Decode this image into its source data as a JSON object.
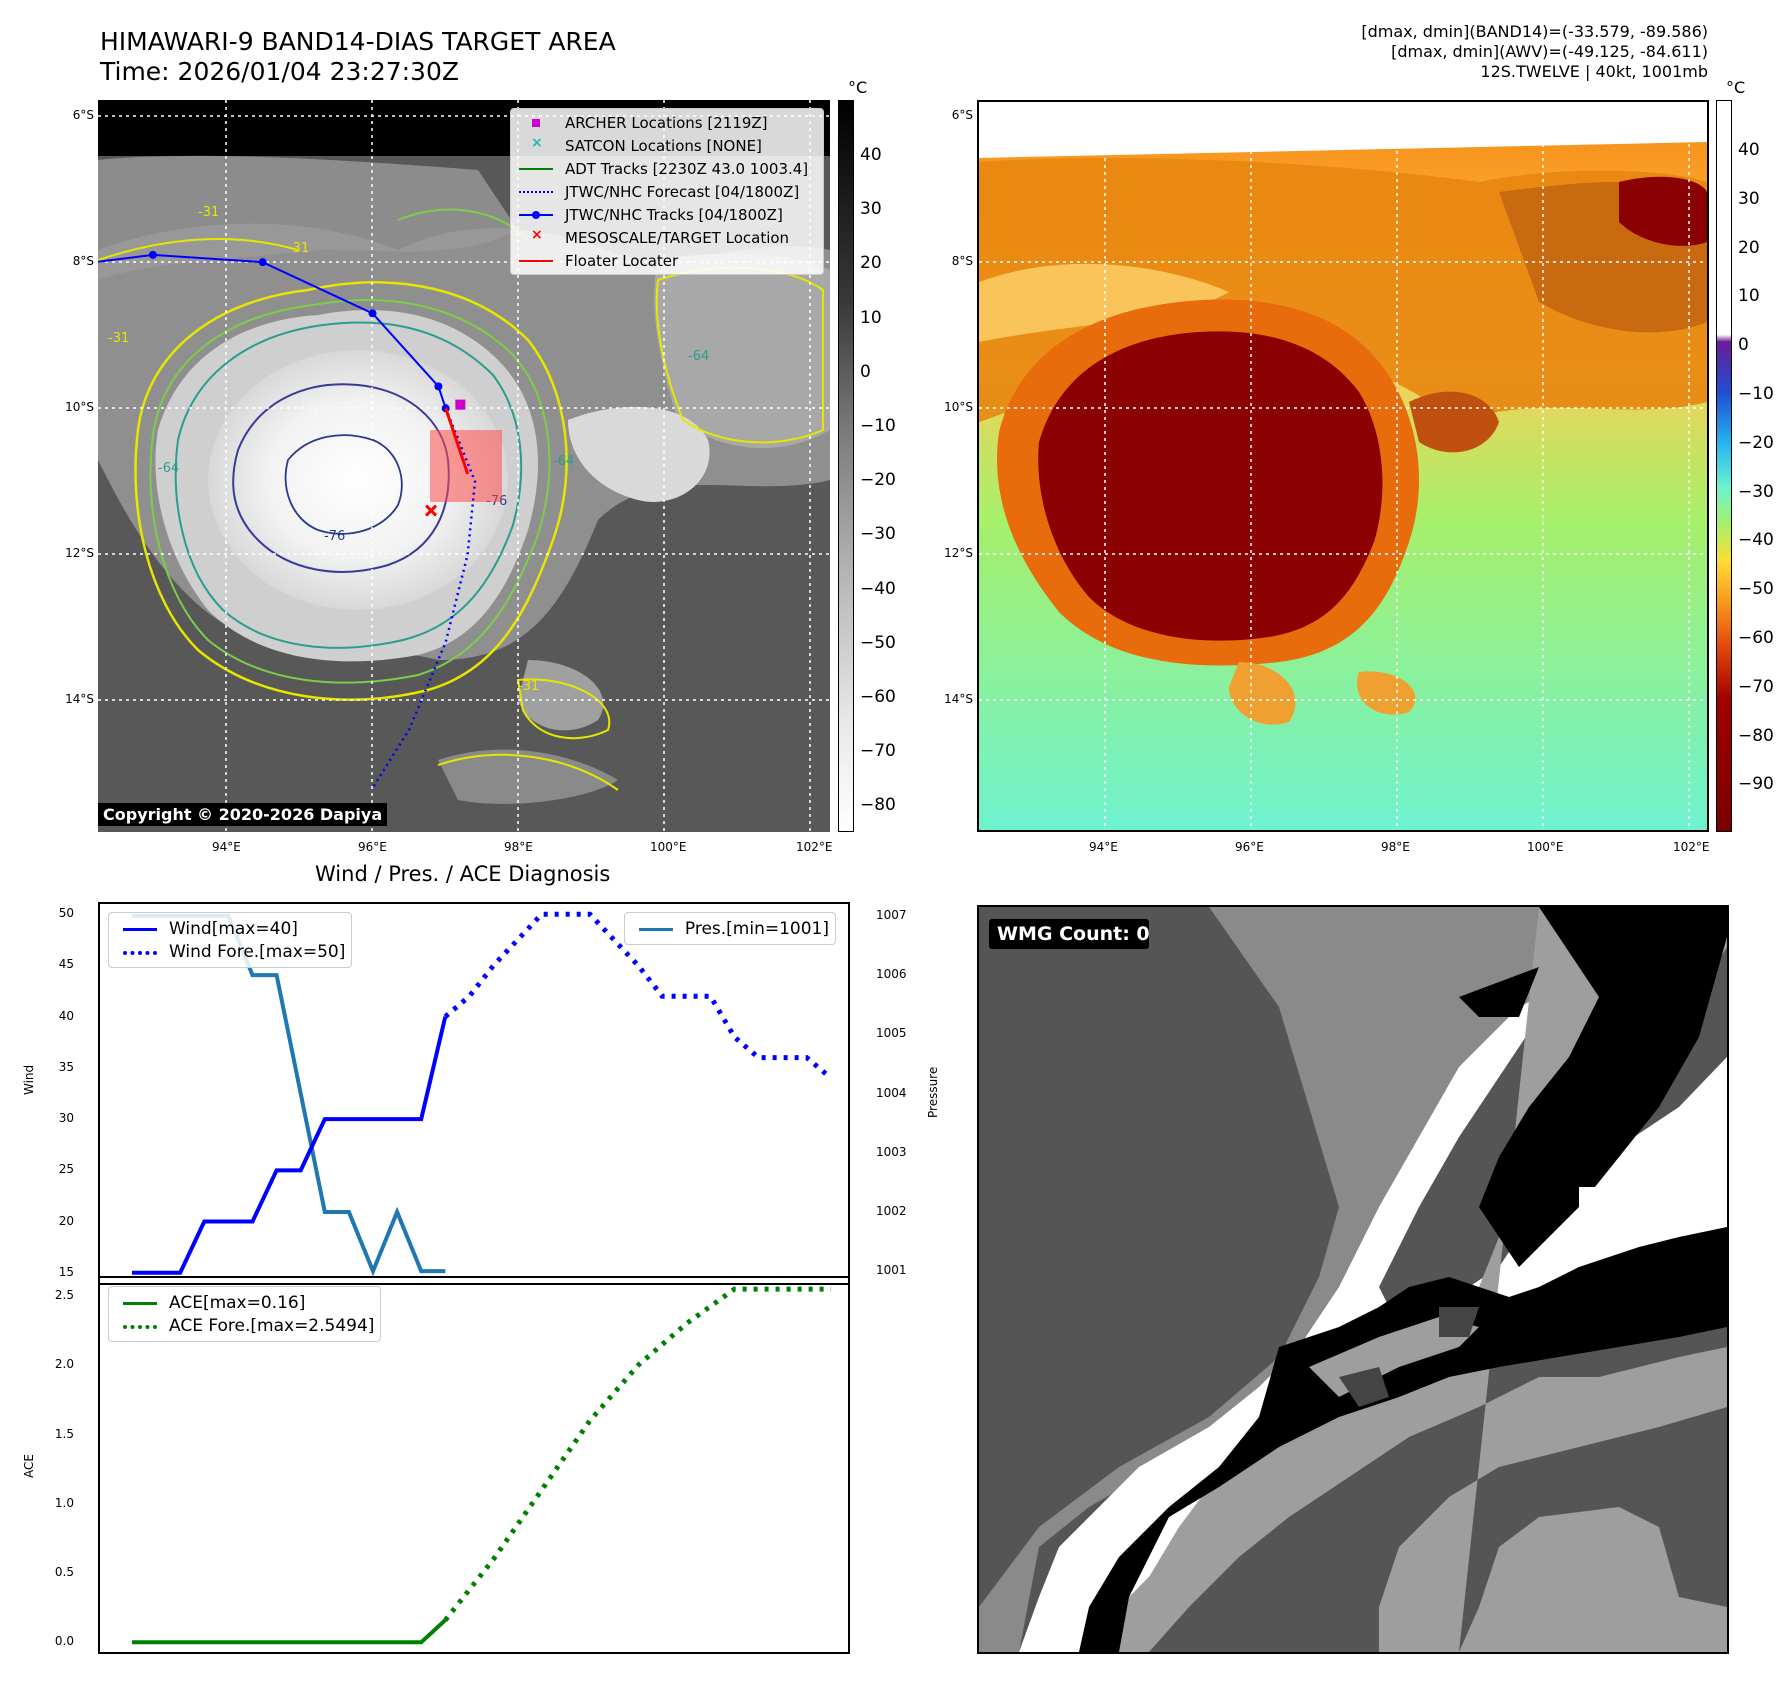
{
  "header": {
    "title_line1": "HIMAWARI-9 BAND14-DIAS TARGET AREA",
    "title_line2": "Time: 2026/01/04 23:27:30Z",
    "info_line1": "[dmax, dmin](BAND14)=(-33.579, -89.586)",
    "info_line2": "[dmax, dmin](AWV)=(-49.125, -84.611)",
    "info_line3": "12S.TWELVE | 40kt, 1001mb"
  },
  "map_axes": {
    "lat_labels": [
      "6°S",
      "8°S",
      "10°S",
      "12°S",
      "14°S"
    ],
    "lon_labels": [
      "94°E",
      "96°E",
      "98°E",
      "100°E",
      "102°E"
    ]
  },
  "ir_colorbar": {
    "unit": "°C",
    "ticks": [
      "40",
      "30",
      "20",
      "10",
      "0",
      "−10",
      "−20",
      "−30",
      "−40",
      "−50",
      "−60",
      "−70",
      "−80"
    ]
  },
  "wv_colorbar": {
    "unit": "°C",
    "ticks": [
      "40",
      "30",
      "20",
      "10",
      "0",
      "−10",
      "−20",
      "−30",
      "−40",
      "−50",
      "−60",
      "−70",
      "−80",
      "−90"
    ]
  },
  "contour_labels": [
    "-31",
    "-31",
    "-31",
    "-31",
    "-64",
    "-64",
    "-64",
    "-76",
    "-76"
  ],
  "map_legend": [
    {
      "label": "ARCHER Locations [2119Z]",
      "color": "#cc00cc",
      "kind": "square"
    },
    {
      "label": "SATCON Locations [NONE]",
      "color": "#1fb5b5",
      "kind": "x"
    },
    {
      "label": "ADT Tracks [2230Z 43.0 1003.4]",
      "color": "#008000",
      "kind": "line"
    },
    {
      "label": "JTWC/NHC Forecast [04/1800Z]",
      "color": "#0000ff",
      "kind": "dotted"
    },
    {
      "label": "JTWC/NHC Tracks [04/1800Z]",
      "color": "#0000ff",
      "kind": "linedot"
    },
    {
      "label": "MESOSCALE/TARGET Location",
      "color": "#ff0000",
      "kind": "x"
    },
    {
      "label": "Floater Locater",
      "color": "#ff0000",
      "kind": "line"
    }
  ],
  "copyright": "Copyright © 2020-2026 Dapiya",
  "tracks": {
    "jtwc_track": [
      [
        92.2,
        -8.0
      ],
      [
        93.0,
        -7.9
      ],
      [
        94.5,
        -8.0
      ],
      [
        96.0,
        -8.7
      ],
      [
        96.9,
        -9.7
      ],
      [
        97.0,
        -10.0
      ]
    ],
    "jtwc_forecast": [
      [
        97.0,
        -10.0
      ],
      [
        97.4,
        -11.0
      ],
      [
        97.3,
        -12.0
      ],
      [
        97.0,
        -13.2
      ],
      [
        96.5,
        -14.4
      ],
      [
        96.0,
        -15.2
      ]
    ],
    "archer": [
      97.2,
      -9.95
    ],
    "target": [
      96.8,
      -11.4
    ],
    "floater": [
      [
        97.0,
        -10.0
      ],
      [
        97.3,
        -10.9
      ]
    ]
  },
  "diag": {
    "title": "Wind / Pres. / ACE Diagnosis",
    "wind_label": "Wind",
    "pres_label": "Pressure",
    "ace_label": "ACE",
    "legend": {
      "wind": "Wind[max=40]",
      "wind_fore": "Wind Fore.[max=50]",
      "pres": "Pres.[min=1001]",
      "ace": "ACE[max=0.16]",
      "ace_fore": "ACE Fore.[max=2.5494]"
    },
    "wind_ticks": [
      "50",
      "45",
      "40",
      "35",
      "30",
      "25",
      "20",
      "15"
    ],
    "pres_ticks": [
      "1007",
      "1006",
      "1005",
      "1004",
      "1003",
      "1002",
      "1001"
    ],
    "ace_ticks": [
      "2.5",
      "2.0",
      "1.5",
      "1.0",
      "0.5",
      "0.0"
    ]
  },
  "chart_data": [
    {
      "type": "line",
      "ylabel": "Wind",
      "ylim": [
        14,
        51
      ],
      "series": [
        {
          "name": "Wind[max=40]",
          "color": "#0000ff",
          "x": [
            0,
            1,
            2,
            3,
            4,
            5,
            6,
            7,
            8,
            9,
            10,
            11,
            12,
            13
          ],
          "values": [
            15,
            15,
            15,
            20,
            20,
            20,
            25,
            25,
            30,
            30,
            30,
            30,
            30,
            40
          ]
        },
        {
          "name": "Wind Fore.[max=50]",
          "color": "#0000ff",
          "x": [
            13,
            14,
            15,
            16,
            17,
            18,
            19,
            20,
            21,
            22,
            23,
            24,
            25,
            26,
            27,
            28,
            29
          ],
          "values": [
            40,
            42,
            45,
            47.5,
            50,
            50,
            50,
            47.5,
            45,
            42,
            42,
            42,
            38,
            36,
            36,
            36,
            34
          ]
        }
      ]
    },
    {
      "type": "line",
      "ylabel": "Pressure",
      "ylim": [
        1000.8,
        1007.2
      ],
      "series": [
        {
          "name": "Pres.[min=1001]",
          "color": "#1f77b4",
          "x": [
            0,
            1,
            2,
            3,
            4,
            5,
            6,
            7,
            8,
            9,
            10,
            11,
            12,
            13
          ],
          "values": [
            1007,
            1007,
            1007,
            1007,
            1007,
            1006,
            1006,
            1004,
            1002,
            1002,
            1001,
            1002,
            1001,
            1001
          ]
        }
      ]
    },
    {
      "type": "line",
      "ylabel": "ACE",
      "ylim": [
        -0.07,
        2.63
      ],
      "series": [
        {
          "name": "ACE[max=0.16]",
          "color": "#008000",
          "x": [
            0,
            12,
            13
          ],
          "values": [
            0,
            0,
            0.16
          ]
        },
        {
          "name": "ACE Fore.[max=2.5494]",
          "color": "#008000",
          "x": [
            13,
            15,
            17,
            19,
            21,
            23,
            25,
            27,
            29
          ],
          "values": [
            0.16,
            0.6,
            1.1,
            1.6,
            2.0,
            2.3,
            2.55,
            2.55,
            2.55
          ]
        }
      ]
    }
  ],
  "wmg": {
    "label": "WMG Count: 0"
  }
}
